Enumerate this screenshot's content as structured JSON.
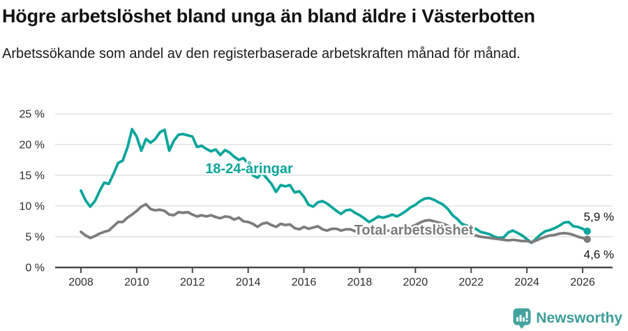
{
  "header": {
    "title": "Högre arbetslöshet bland unga än bland äldre i Västerbotten",
    "subtitle": "Arbetssökande som andel av den registerbaserade arbetskraften månad för månad."
  },
  "chart_data": {
    "type": "line",
    "title": "Högre arbetslöshet bland unga än bland äldre i Västerbotten",
    "subtitle": "Arbetssökande som andel av den registerbaserade arbetskraften månad för månad.",
    "x_start_year": 2008,
    "points_per_year": 6,
    "x_ticks": [
      "2008",
      "2010",
      "2012",
      "2014",
      "2016",
      "2018",
      "2020",
      "2022",
      "2024",
      "2026"
    ],
    "y_ticks": [
      "0 %",
      "5 %",
      "10 %",
      "15 %",
      "20 %",
      "25 %"
    ],
    "y_gridlines": [
      5,
      10,
      15,
      20,
      25
    ],
    "ylim": [
      0,
      25
    ],
    "xlim": [
      2007.1,
      2027.1
    ],
    "grid": "horizontal",
    "legend_position": "inline-labels",
    "colors": {
      "accent_teal": "#0aa59a",
      "line_gray": "#7c7c7c",
      "gridline": "#dcdcdc",
      "axis": "#4a4a4a",
      "text": "#2e2e2e"
    },
    "series": [
      {
        "name": "18-24-åringar",
        "color": "#0aa59a",
        "end_label": "5,9 %",
        "end_value": 5.9,
        "values": [
          12.5,
          10.9,
          9.9,
          10.8,
          12.4,
          13.8,
          13.6,
          15.2,
          17.0,
          17.4,
          19.5,
          22.5,
          21.3,
          19.0,
          20.9,
          20.3,
          20.9,
          22.0,
          22.4,
          19.0,
          20.6,
          21.6,
          21.7,
          21.5,
          21.3,
          19.6,
          19.8,
          19.3,
          18.9,
          19.2,
          18.3,
          19.1,
          18.7,
          18.0,
          17.5,
          17.8,
          16.8,
          15.0,
          14.6,
          15.4,
          14.5,
          13.6,
          12.3,
          13.4,
          13.2,
          13.4,
          12.2,
          12.4,
          11.5,
          10.2,
          9.9,
          10.6,
          10.8,
          10.4,
          9.8,
          9.2,
          8.7,
          9.3,
          9.4,
          8.9,
          8.5,
          8.0,
          7.4,
          7.8,
          8.3,
          8.1,
          8.3,
          8.6,
          8.3,
          8.7,
          9.2,
          9.8,
          10.2,
          10.8,
          11.2,
          11.3,
          11.0,
          10.6,
          10.2,
          9.5,
          8.5,
          7.9,
          7.1,
          6.8,
          6.6,
          6.3,
          5.8,
          5.6,
          5.4,
          5.0,
          4.8,
          4.9,
          5.7,
          6.0,
          5.6,
          5.2,
          4.6,
          4.0,
          4.7,
          5.4,
          5.9,
          6.1,
          6.4,
          6.8,
          7.3,
          7.4,
          6.7,
          6.6,
          6.3,
          5.9
        ]
      },
      {
        "name": "Total arbetslöshet",
        "color": "#7c7c7c",
        "end_label": "4,6 %",
        "end_value": 4.6,
        "values": [
          5.8,
          5.2,
          4.8,
          5.1,
          5.5,
          5.8,
          6.0,
          6.7,
          7.4,
          7.4,
          8.1,
          8.6,
          9.2,
          9.9,
          10.3,
          9.5,
          9.3,
          9.4,
          9.2,
          8.6,
          8.5,
          9.0,
          8.9,
          9.0,
          8.6,
          8.3,
          8.5,
          8.3,
          8.5,
          8.2,
          8.0,
          8.3,
          8.2,
          7.8,
          8.1,
          7.5,
          7.4,
          7.1,
          6.6,
          7.1,
          7.3,
          6.9,
          6.6,
          7.1,
          6.9,
          7.0,
          6.4,
          6.2,
          6.6,
          6.3,
          6.5,
          6.7,
          6.2,
          6.0,
          6.3,
          6.3,
          6.0,
          6.2,
          6.2,
          5.9,
          6.0,
          5.8,
          5.7,
          5.9,
          6.0,
          5.9,
          6.0,
          5.9,
          6.0,
          6.1,
          6.3,
          6.6,
          6.9,
          7.3,
          7.6,
          7.7,
          7.5,
          7.3,
          7.1,
          6.8,
          6.4,
          6.1,
          5.9,
          5.7,
          5.5,
          5.2,
          5.0,
          4.9,
          4.8,
          4.7,
          4.6,
          4.5,
          4.4,
          4.5,
          4.4,
          4.3,
          4.3,
          4.1,
          4.4,
          4.7,
          5.0,
          5.2,
          5.3,
          5.5,
          5.6,
          5.5,
          5.3,
          5.0,
          4.8,
          4.6
        ]
      }
    ]
  },
  "footer": {
    "brand": "Newsworthy"
  }
}
